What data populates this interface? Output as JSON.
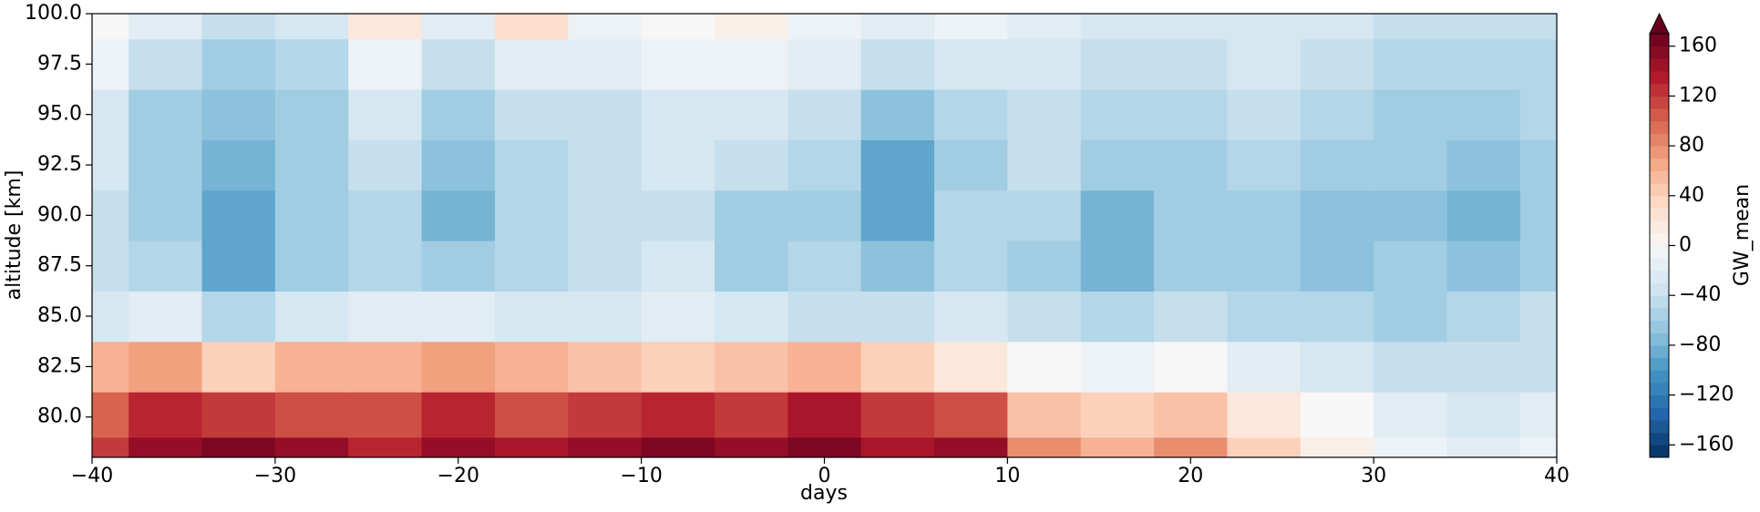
{
  "chart_data": {
    "type": "contourf",
    "xlabel": "days",
    "ylabel": "altitude [km]",
    "colorbar_label": "GW_mean",
    "colormap": "RdBu_r",
    "x": [
      -40,
      -36,
      -32,
      -28,
      -24,
      -20,
      -16,
      -12,
      -8,
      -4,
      0,
      4,
      8,
      12,
      16,
      20,
      24,
      28,
      32,
      36,
      40
    ],
    "y": [
      78,
      80,
      82.5,
      85,
      87.5,
      90,
      92.5,
      95,
      97.5,
      100
    ],
    "z": [
      [
        120,
        150,
        160,
        150,
        130,
        150,
        140,
        150,
        160,
        150,
        160,
        140,
        150,
        80,
        60,
        80,
        40,
        10,
        -10,
        -20,
        -10
      ],
      [
        100,
        130,
        120,
        110,
        110,
        130,
        110,
        120,
        130,
        120,
        140,
        120,
        110,
        50,
        40,
        50,
        20,
        0,
        -20,
        -30,
        -20
      ],
      [
        60,
        70,
        40,
        60,
        60,
        70,
        60,
        50,
        40,
        50,
        60,
        40,
        20,
        0,
        -10,
        0,
        -20,
        -30,
        -40,
        -40,
        -40
      ],
      [
        -30,
        -20,
        -50,
        -30,
        -20,
        -20,
        -30,
        -30,
        -20,
        -30,
        -40,
        -40,
        -30,
        -40,
        -50,
        -40,
        -50,
        -50,
        -60,
        -50,
        -40
      ],
      [
        -40,
        -50,
        -90,
        -60,
        -50,
        -60,
        -50,
        -40,
        -30,
        -60,
        -50,
        -70,
        -50,
        -60,
        -80,
        -60,
        -60,
        -70,
        -60,
        -70,
        -60
      ],
      [
        -40,
        -60,
        -90,
        -60,
        -50,
        -80,
        -50,
        -40,
        -40,
        -60,
        -60,
        -90,
        -50,
        -50,
        -80,
        -60,
        -60,
        -70,
        -70,
        -80,
        -60
      ],
      [
        -30,
        -60,
        -80,
        -60,
        -40,
        -70,
        -50,
        -40,
        -30,
        -40,
        -50,
        -90,
        -60,
        -40,
        -60,
        -60,
        -50,
        -60,
        -60,
        -70,
        -60
      ],
      [
        -30,
        -60,
        -70,
        -60,
        -30,
        -60,
        -40,
        -40,
        -30,
        -30,
        -40,
        -70,
        -50,
        -40,
        -50,
        -50,
        -40,
        -50,
        -60,
        -60,
        -50
      ],
      [
        -10,
        -40,
        -60,
        -50,
        -10,
        -40,
        -20,
        -20,
        -10,
        -10,
        -20,
        -40,
        -30,
        -30,
        -40,
        -40,
        -30,
        -40,
        -50,
        -50,
        -50
      ],
      [
        0,
        -20,
        -40,
        -30,
        20,
        -20,
        30,
        -10,
        0,
        10,
        -10,
        -20,
        -10,
        -20,
        -30,
        -30,
        -30,
        -30,
        -40,
        -40,
        -40
      ]
    ],
    "xlim": [
      -40,
      40
    ],
    "xticks": [
      {
        "value": -40,
        "label": "−40"
      },
      {
        "value": -30,
        "label": "−30"
      },
      {
        "value": -20,
        "label": "−20"
      },
      {
        "value": -10,
        "label": "−10"
      },
      0,
      10,
      20,
      30,
      40
    ],
    "ylim": [
      78,
      100
    ],
    "yticks": [
      {
        "value": 80,
        "label": "80.0"
      },
      82.5,
      {
        "value": 85,
        "label": "85.0"
      },
      87.5,
      {
        "value": 90,
        "label": "90.0"
      },
      92.5,
      {
        "value": 95,
        "label": "95.0"
      },
      97.5,
      {
        "value": 100,
        "label": "100.0"
      }
    ],
    "clim": [
      -170,
      170
    ],
    "cticks": [
      {
        "value": -160,
        "label": "−160"
      },
      {
        "value": -120,
        "label": "−120"
      },
      {
        "value": -80,
        "label": "−80"
      },
      {
        "value": -40,
        "label": "−40"
      },
      0,
      40,
      80,
      120,
      160
    ]
  }
}
